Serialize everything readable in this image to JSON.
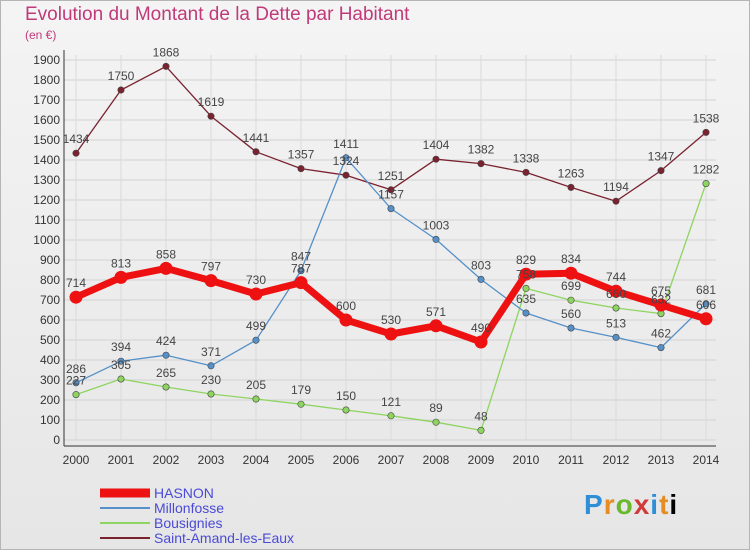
{
  "header": {
    "title": "Evolution du Montant de la Dette par Habitant",
    "subtitle": "(en €)"
  },
  "logo": {
    "text": "Proxiti"
  },
  "colors": {
    "title": "#c03a7a",
    "HASNON": "#ee1111",
    "Millonfosse": "#5590c8",
    "Bousignies": "#8ed460",
    "Saint-Amand-les-Eaux": "#7a2230"
  },
  "chart_data": {
    "type": "line",
    "title": "Evolution du Montant de la Dette par Habitant",
    "subtitle": "(en €)",
    "xlabel": "",
    "ylabel": "",
    "x": [
      "2000",
      "2001",
      "2002",
      "2003",
      "2004",
      "2005",
      "2006",
      "2007",
      "2008",
      "2009",
      "2010",
      "2011",
      "2012",
      "2013",
      "2014"
    ],
    "ylim": [
      0,
      1900
    ],
    "yticks": [
      0,
      100,
      200,
      300,
      400,
      500,
      600,
      700,
      800,
      900,
      1000,
      1100,
      1200,
      1300,
      1400,
      1500,
      1600,
      1700,
      1800,
      1900
    ],
    "grid": true,
    "legend_position": "bottom-left",
    "series": [
      {
        "name": "HASNON",
        "values": [
          714,
          813,
          858,
          797,
          730,
          787,
          600,
          530,
          571,
          490,
          829,
          834,
          744,
          675,
          606
        ]
      },
      {
        "name": "Millonfosse",
        "values": [
          286,
          394,
          424,
          371,
          499,
          847,
          1411,
          1157,
          1003,
          803,
          635,
          560,
          513,
          462,
          681
        ]
      },
      {
        "name": "Bousignies",
        "values": [
          227,
          305,
          265,
          230,
          205,
          179,
          150,
          121,
          89,
          48,
          758,
          699,
          660,
          632,
          1282
        ]
      },
      {
        "name": "Saint-Amand-les-Eaux",
        "values": [
          1434,
          1750,
          1868,
          1619,
          1441,
          1357,
          1324,
          1251,
          1404,
          1382,
          1338,
          1263,
          1194,
          1347,
          1538
        ]
      }
    ]
  }
}
